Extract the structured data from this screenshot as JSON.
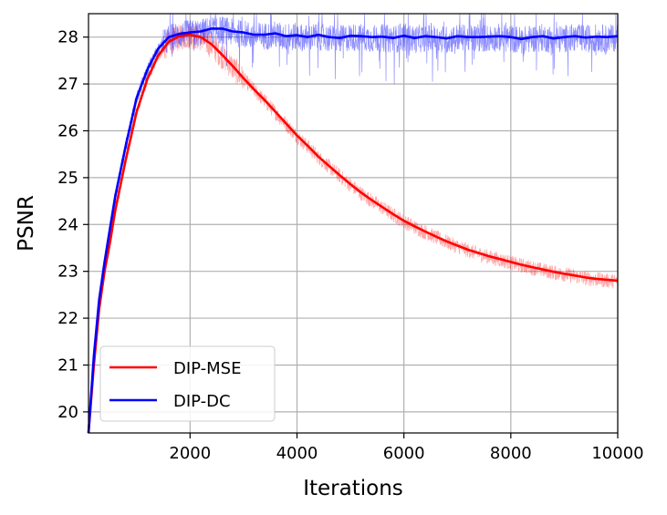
{
  "chart_data": {
    "type": "line",
    "title": "",
    "xlabel": "Iterations",
    "ylabel": "PSNR",
    "xlim": [
      100,
      10000
    ],
    "ylim": [
      19.55,
      28.5
    ],
    "xticks": [
      2000,
      4000,
      6000,
      8000,
      10000
    ],
    "xtick_labels": [
      "2000",
      "4000",
      "6000",
      "8000",
      "10000"
    ],
    "yticks": [
      20,
      21,
      22,
      23,
      24,
      25,
      26,
      27,
      28
    ],
    "ytick_labels": [
      "20",
      "21",
      "22",
      "23",
      "24",
      "25",
      "26",
      "27",
      "28"
    ],
    "grid": true,
    "legend_position": "lower-left",
    "series": [
      {
        "name": "DIP-MSE",
        "color": "#ff0000",
        "x": [
          100,
          200,
          300,
          400,
          500,
          600,
          800,
          1000,
          1200,
          1400,
          1600,
          1800,
          2000,
          2200,
          2400,
          2600,
          2800,
          3000,
          3200,
          3400,
          3600,
          3800,
          4000,
          4200,
          4400,
          4600,
          4800,
          5000,
          5200,
          5400,
          5600,
          5800,
          6000,
          6200,
          6400,
          6600,
          6800,
          7000,
          7200,
          7400,
          7600,
          7800,
          8000,
          8200,
          8400,
          8600,
          8800,
          9000,
          9200,
          9400,
          9600,
          9800,
          10000
        ],
        "values": [
          19.55,
          21.0,
          22.2,
          23.0,
          23.6,
          24.3,
          25.4,
          26.4,
          27.1,
          27.6,
          27.9,
          28.02,
          28.05,
          28.0,
          27.85,
          27.62,
          27.38,
          27.12,
          26.88,
          26.65,
          26.4,
          26.15,
          25.9,
          25.68,
          25.45,
          25.25,
          25.05,
          24.86,
          24.68,
          24.52,
          24.37,
          24.22,
          24.08,
          23.96,
          23.85,
          23.74,
          23.64,
          23.55,
          23.46,
          23.39,
          23.32,
          23.26,
          23.2,
          23.14,
          23.09,
          23.04,
          22.99,
          22.95,
          22.91,
          22.87,
          22.84,
          22.82,
          22.8
        ]
      },
      {
        "name": "DIP-DC",
        "color": "#0000ff",
        "x": [
          100,
          200,
          300,
          400,
          500,
          600,
          800,
          1000,
          1200,
          1400,
          1600,
          1800,
          2000,
          2200,
          2400,
          2600,
          2800,
          3000,
          3200,
          3400,
          3600,
          3800,
          4000,
          4200,
          4400,
          4600,
          4800,
          5000,
          5200,
          5400,
          5600,
          5800,
          6000,
          6200,
          6400,
          6600,
          6800,
          7000,
          7200,
          7400,
          7600,
          7800,
          8000,
          8200,
          8400,
          8600,
          8800,
          9000,
          9200,
          9400,
          9600,
          9800,
          10000
        ],
        "values": [
          19.55,
          21.2,
          22.4,
          23.2,
          23.9,
          24.6,
          25.7,
          26.7,
          27.3,
          27.75,
          28.0,
          28.07,
          28.1,
          28.12,
          28.18,
          28.18,
          28.12,
          28.1,
          28.05,
          28.05,
          28.08,
          28.02,
          28.04,
          28.0,
          28.05,
          28.0,
          27.98,
          28.03,
          28.02,
          28.0,
          28.01,
          27.98,
          28.03,
          27.98,
          28.02,
          28.0,
          27.97,
          28.02,
          28.0,
          28.0,
          28.01,
          28.02,
          28.0,
          27.96,
          28.0,
          28.02,
          27.97,
          28.0,
          28.02,
          27.99,
          28.01,
          28.0,
          28.02
        ]
      }
    ]
  }
}
